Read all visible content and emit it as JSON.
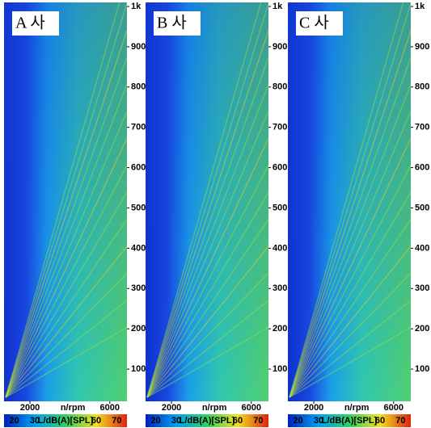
{
  "chart_data": [
    {
      "type": "heatmap",
      "title": "A 사",
      "xlabel": "n/rpm",
      "xlim": [
        700,
        6860
      ],
      "xticks": [
        2000,
        6000
      ],
      "ylim": [
        20,
        1010
      ],
      "yticks": [
        100,
        200,
        300,
        400,
        500,
        600,
        700,
        800,
        900,
        {
          "value": 1000,
          "label": "1k"
        }
      ],
      "colorbar": {
        "label": "L/dB(A)[SPL]",
        "lim": [
          15,
          75
        ],
        "ticks": [
          20,
          30,
          60,
          70
        ]
      }
    },
    {
      "type": "heatmap",
      "title": "B 사",
      "xlabel": "n/rpm",
      "xlim": [
        700,
        6860
      ],
      "xticks": [
        2000,
        6000
      ],
      "ylim": [
        20,
        1010
      ],
      "yticks": [
        100,
        200,
        300,
        400,
        500,
        600,
        700,
        800,
        900,
        {
          "value": 1000,
          "label": "1k"
        }
      ],
      "colorbar": {
        "label": "L/dB(A)[SPL]",
        "lim": [
          15,
          75
        ],
        "ticks": [
          20,
          30,
          60,
          70
        ]
      }
    },
    {
      "type": "heatmap",
      "title": "C 사",
      "xlabel": "n/rpm",
      "xlim": [
        700,
        6860
      ],
      "xticks": [
        2000,
        6000
      ],
      "ylim": [
        20,
        1010
      ],
      "yticks": [
        100,
        200,
        300,
        400,
        500,
        600,
        700,
        800,
        900,
        {
          "value": 1000,
          "label": "1k"
        }
      ],
      "colorbar": {
        "label": "L/dB(A)[SPL]",
        "lim": [
          15,
          75
        ],
        "ticks": [
          20,
          30,
          60,
          70
        ]
      }
    }
  ]
}
